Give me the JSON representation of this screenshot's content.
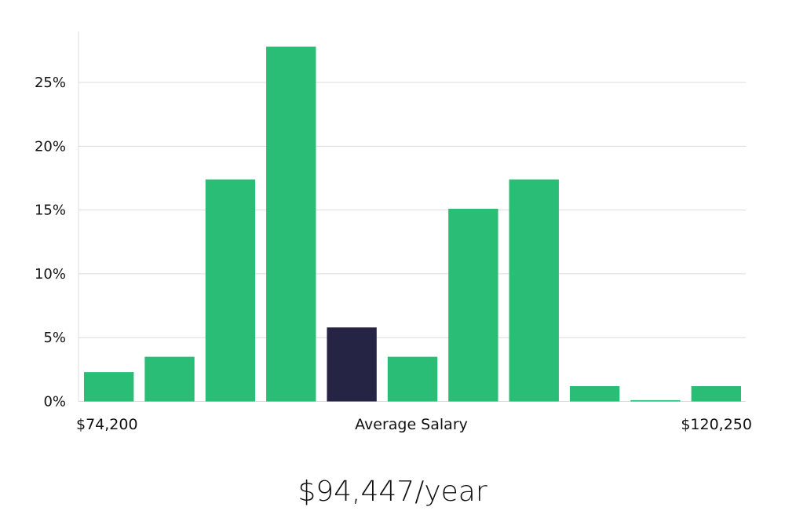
{
  "chart_data": {
    "type": "bar",
    "title": "",
    "xlabel": "Average Salary",
    "ylabel": "",
    "x_min_label": "$74,200",
    "x_max_label": "$120,250",
    "values": [
      2.3,
      3.5,
      17.4,
      27.8,
      5.8,
      3.5,
      15.1,
      17.4,
      1.2,
      0.1,
      1.2
    ],
    "highlight_index": 4,
    "yticks": [
      0,
      5,
      10,
      15,
      20,
      25
    ],
    "ytick_labels": [
      "0%",
      "5%",
      "10%",
      "15%",
      "20%",
      "25%"
    ],
    "ylim": [
      0,
      29
    ],
    "grid": true,
    "colors": {
      "bar": "#2abd76",
      "highlight": "#262444",
      "grid": "#dcdcdc",
      "axis": "#dcdcdc"
    }
  },
  "salary_text": "$94,447/year"
}
